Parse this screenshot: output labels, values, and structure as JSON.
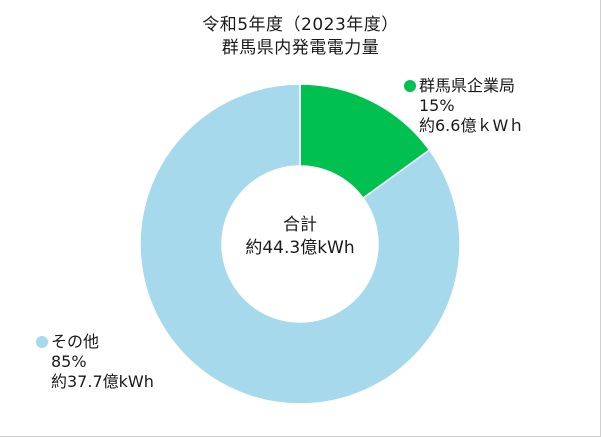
{
  "colors": {
    "enterprise": "#00c050",
    "other": "#a6d9ec",
    "stroke": "#ffffff"
  },
  "chart_data": {
    "type": "pie",
    "title": "令和5年度（2023年度）",
    "subtitle": "群馬県内発電電力量",
    "center_label": "合計",
    "center_value": "約44.3億kWh",
    "total": 44.3,
    "unit": "億kWh",
    "series": [
      {
        "name": "群馬県企業局",
        "percent_label": "15%",
        "amount_label": "約6.6億ｋWｈ",
        "value": 6.6,
        "share": 0.15,
        "color_key": "enterprise"
      },
      {
        "name": "その他",
        "percent_label": "85%",
        "amount_label": "約37.7億kWh",
        "value": 37.7,
        "share": 0.85,
        "color_key": "other"
      }
    ]
  }
}
